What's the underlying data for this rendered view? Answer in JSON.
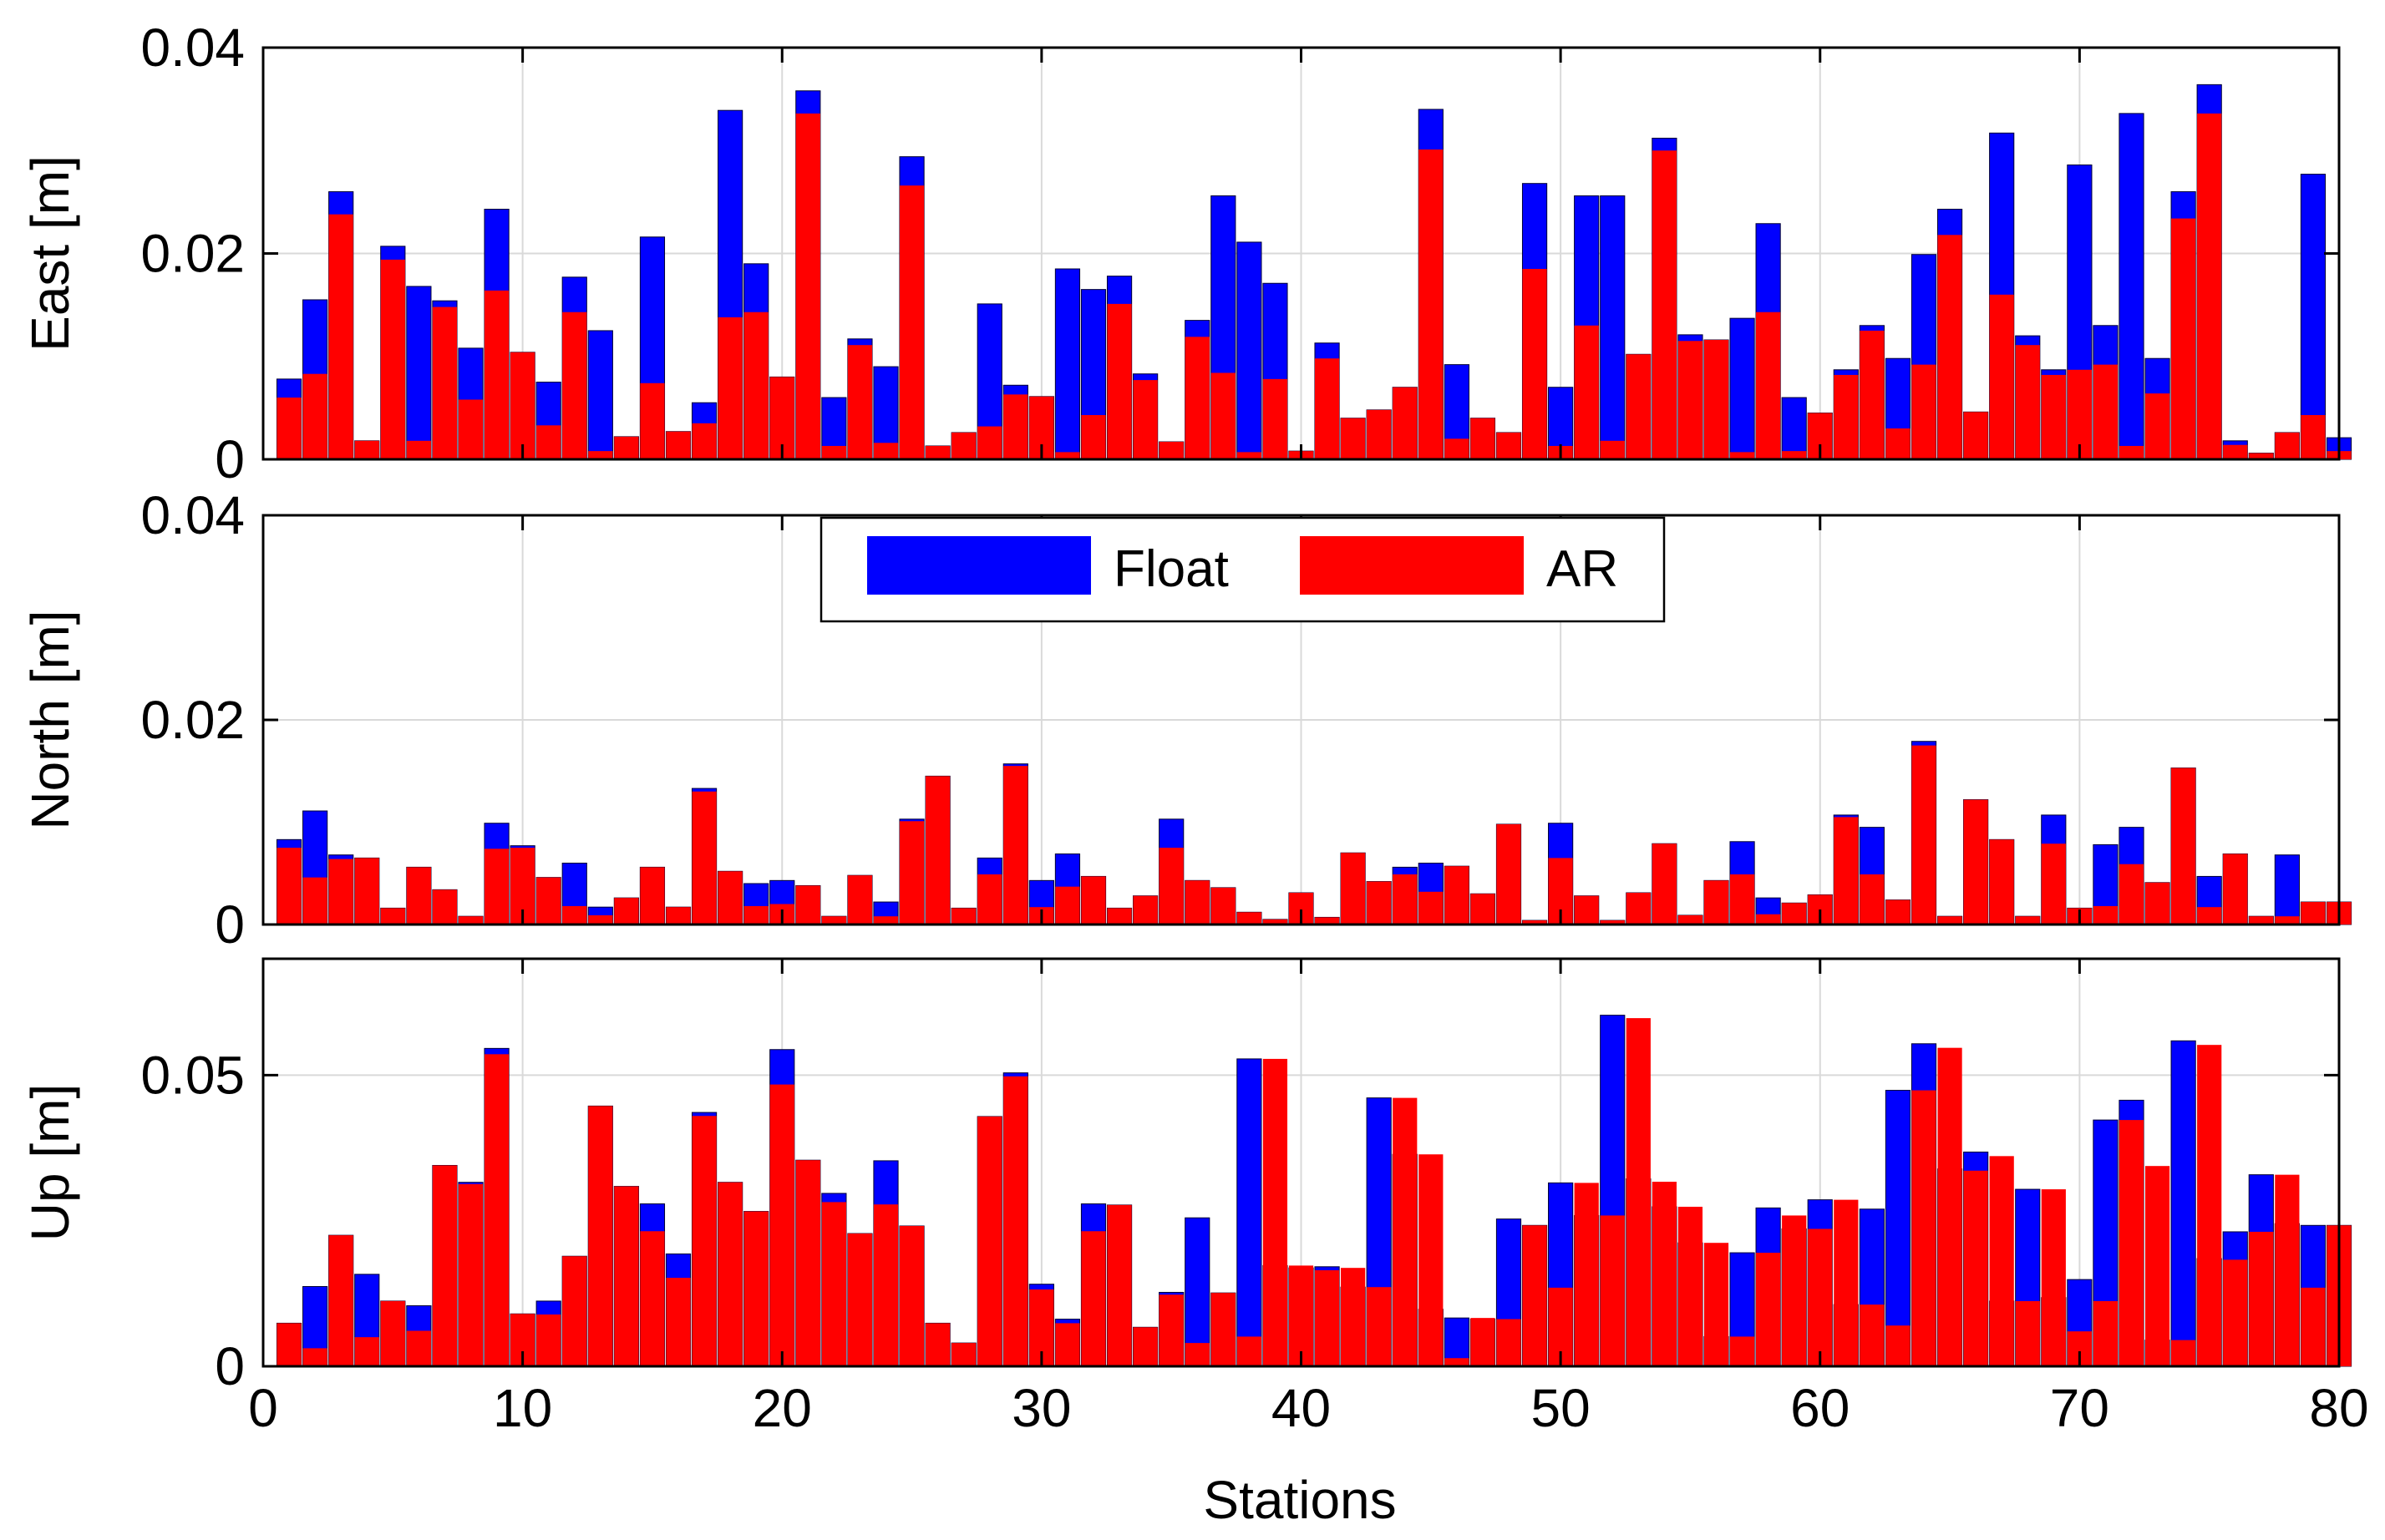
{
  "chart_data": {
    "type": "bar",
    "subtype": "overlaid",
    "xlabel": "Stations",
    "xlim": [
      0,
      80
    ],
    "xticks": [
      0,
      10,
      20,
      30,
      40,
      50,
      60,
      70,
      80
    ],
    "legend": {
      "placement": "top-center of middle panel",
      "entries": [
        {
          "name": "Float",
          "color": "#0000ff"
        },
        {
          "name": "AR",
          "color": "#ff0000"
        }
      ]
    },
    "colors": {
      "float": "#0000ff",
      "ar": "#ff0000"
    },
    "grid": true,
    "panels": [
      {
        "name": "east",
        "ylabel": "East [m]",
        "ylim": [
          0,
          0.04
        ],
        "yticks": [
          0,
          0.02,
          0.04
        ],
        "ytick_labels": [
          "0",
          "0.02",
          "0.04"
        ],
        "float": [
          0.0078,
          0.0155,
          0.026,
          0.0018,
          0.0207,
          0.0168,
          0.0154,
          0.0108,
          0.0243,
          0.0104,
          0.0075,
          0.0177,
          0.0125,
          0.0022,
          0.0216,
          0.0027,
          0.0055,
          0.0339,
          0.019,
          0.008,
          0.0358,
          0.006,
          0.0117,
          0.009,
          0.0294,
          0.0013,
          0.0026,
          0.0151,
          0.0072,
          0.0061,
          0.0185,
          0.0165,
          0.0178,
          0.0083,
          0.0017,
          0.0135,
          0.0256,
          0.0211,
          0.0171,
          0.0008,
          0.0113,
          0.004,
          0.0048,
          0.007,
          0.034,
          0.0092,
          0.004,
          0.0026,
          0.0268,
          0.007,
          0.0256,
          0.0256,
          0.0102,
          0.0312,
          0.0121,
          0.0116,
          0.0137,
          0.0229,
          0.006,
          0.0045,
          0.0087,
          0.013,
          0.0098,
          0.0199,
          0.0243,
          0.0046,
          0.0317,
          0.012,
          0.0087,
          0.0286,
          0.013,
          0.0336,
          0.0098,
          0.026,
          0.0364,
          0.0018,
          0.0006,
          0.0026,
          0.0277,
          0.0021
        ],
        "ar": [
          0.006,
          0.0083,
          0.0238,
          0.0018,
          0.0194,
          0.0018,
          0.0148,
          0.0058,
          0.0164,
          0.0104,
          0.0033,
          0.0143,
          0.0008,
          0.0022,
          0.0074,
          0.0027,
          0.0035,
          0.0138,
          0.0143,
          0.008,
          0.0336,
          0.0013,
          0.0111,
          0.0016,
          0.0266,
          0.0013,
          0.0026,
          0.0032,
          0.0063,
          0.0061,
          0.0007,
          0.0043,
          0.0151,
          0.0077,
          0.0017,
          0.0119,
          0.0084,
          0.0007,
          0.0078,
          0.0008,
          0.0098,
          0.004,
          0.0048,
          0.007,
          0.0301,
          0.002,
          0.004,
          0.0026,
          0.0185,
          0.0013,
          0.013,
          0.0018,
          0.0102,
          0.03,
          0.0115,
          0.0116,
          0.0007,
          0.0143,
          0.0008,
          0.0045,
          0.0082,
          0.0125,
          0.003,
          0.0092,
          0.0218,
          0.0046,
          0.016,
          0.0111,
          0.0082,
          0.0087,
          0.0092,
          0.0013,
          0.0064,
          0.0234,
          0.0336,
          0.0014,
          0.0006,
          0.0026,
          0.0043,
          0.0008
        ]
      },
      {
        "name": "north",
        "ylabel": "North [m]",
        "ylim": [
          0,
          0.04
        ],
        "yticks": [
          0,
          0.02,
          0.04
        ],
        "ytick_labels": [
          "0",
          "0.02",
          "0.04"
        ],
        "float": [
          0.0083,
          0.0111,
          0.0068,
          0.0065,
          0.0016,
          0.0056,
          0.0034,
          0.0008,
          0.0099,
          0.0077,
          0.0046,
          0.006,
          0.0017,
          0.0026,
          0.0056,
          0.0017,
          0.0133,
          0.0052,
          0.004,
          0.0043,
          0.0038,
          0.0008,
          0.0048,
          0.0022,
          0.0103,
          0.0145,
          0.0016,
          0.0065,
          0.0157,
          0.0043,
          0.0069,
          0.0047,
          0.0016,
          0.0028,
          0.0103,
          0.0043,
          0.0036,
          0.0012,
          0.0005,
          0.0031,
          0.0007,
          0.007,
          0.0042,
          0.0056,
          0.006,
          0.0057,
          0.003,
          0.0098,
          0.0004,
          0.0099,
          0.0028,
          0.0004,
          0.0031,
          0.0079,
          0.0009,
          0.0043,
          0.0081,
          0.0026,
          0.0021,
          0.0029,
          0.0107,
          0.0095,
          0.0024,
          0.0179,
          0.0008,
          0.0122,
          0.0083,
          0.0008,
          0.0107,
          0.0016,
          0.0078,
          0.0095,
          0.0041,
          0.0153,
          0.0047,
          0.0069,
          0.0008,
          0.0068,
          0.0022,
          0.0022
        ],
        "ar": [
          0.0075,
          0.0046,
          0.0064,
          0.0065,
          0.0016,
          0.0056,
          0.0034,
          0.0008,
          0.0074,
          0.0075,
          0.0046,
          0.0018,
          0.0009,
          0.0026,
          0.0056,
          0.0017,
          0.013,
          0.0052,
          0.0018,
          0.002,
          0.0038,
          0.0008,
          0.0048,
          0.0008,
          0.0101,
          0.0145,
          0.0016,
          0.0049,
          0.0155,
          0.0017,
          0.0037,
          0.0047,
          0.0016,
          0.0028,
          0.0075,
          0.0043,
          0.0036,
          0.0012,
          0.0005,
          0.0031,
          0.0007,
          0.007,
          0.0042,
          0.0049,
          0.0032,
          0.0057,
          0.003,
          0.0098,
          0.0004,
          0.0065,
          0.0028,
          0.0004,
          0.0031,
          0.0079,
          0.0009,
          0.0043,
          0.0049,
          0.001,
          0.0021,
          0.0029,
          0.0105,
          0.0049,
          0.0024,
          0.0175,
          0.0008,
          0.0122,
          0.0083,
          0.0008,
          0.0079,
          0.0016,
          0.0018,
          0.0059,
          0.0041,
          0.0153,
          0.0017,
          0.0069,
          0.0008,
          0.0008,
          0.0022,
          0.0022
        ]
      },
      {
        "name": "up",
        "ylabel": "Up [m]",
        "ylim": [
          0,
          0.07
        ],
        "yticks": [
          0,
          0.05
        ],
        "ytick_labels": [
          "0",
          "0.05"
        ],
        "float": [
          0.0074,
          0.0137,
          0.0225,
          0.0158,
          0.0112,
          0.0104,
          0.0345,
          0.0316,
          0.0546,
          0.009,
          0.0112,
          0.0189,
          0.0447,
          0.0309,
          0.0279,
          0.0193,
          0.0436,
          0.0316,
          0.0266,
          0.0544,
          0.0354,
          0.0297,
          0.0228,
          0.0353,
          0.0241,
          0.0074,
          0.004,
          0.0429,
          0.0504,
          0.0141,
          0.0081,
          0.0279,
          0.0277,
          0.0067,
          0.0127,
          0.0255,
          0.0126,
          0.0528,
          0.0173,
          0.0169,
          0.0171,
          0.0136,
          0.0461,
          0.0364,
          0.0098,
          0.0083,
          0.0081,
          0.0253,
          0.0242,
          0.0315,
          0.0259,
          0.0603,
          0.0322,
          0.0274,
          0.0212,
          0.0051,
          0.0195,
          0.0272,
          0.0236,
          0.0286,
          0.0106,
          0.027,
          0.0474,
          0.0554,
          0.0339,
          0.0368,
          0.0112,
          0.0304,
          0.0118,
          0.0149,
          0.0423,
          0.0457,
          0.0045,
          0.0559,
          0.0185,
          0.0231,
          0.0329,
          0.0245,
          0.0242,
          0.0242
        ],
        "ar": [
          0.0074,
          0.0031,
          0.0225,
          0.005,
          0.0112,
          0.0061,
          0.0345,
          0.0313,
          0.0536,
          0.009,
          0.0089,
          0.0189,
          0.0447,
          0.0309,
          0.0232,
          0.0152,
          0.043,
          0.0316,
          0.0266,
          0.0484,
          0.0354,
          0.0282,
          0.0228,
          0.0278,
          0.0241,
          0.0074,
          0.004,
          0.0429,
          0.0498,
          0.0132,
          0.0074,
          0.0232,
          0.0277,
          0.0067,
          0.0123,
          0.004,
          0.0126,
          0.0051,
          0.0528,
          0.0173,
          0.0165,
          0.0169,
          0.0136,
          0.0461,
          0.0364,
          0.0014,
          0.0083,
          0.0081,
          0.0242,
          0.0135,
          0.0315,
          0.0259,
          0.0598,
          0.0317,
          0.0274,
          0.0212,
          0.0051,
          0.0195,
          0.0259,
          0.0236,
          0.0286,
          0.0106,
          0.007,
          0.0474,
          0.0547,
          0.0336,
          0.0361,
          0.0112,
          0.0304,
          0.006,
          0.0112,
          0.0423,
          0.0344,
          0.0045,
          0.0552,
          0.0183,
          0.0231,
          0.0329,
          0.0135,
          0.0242
        ]
      }
    ]
  }
}
